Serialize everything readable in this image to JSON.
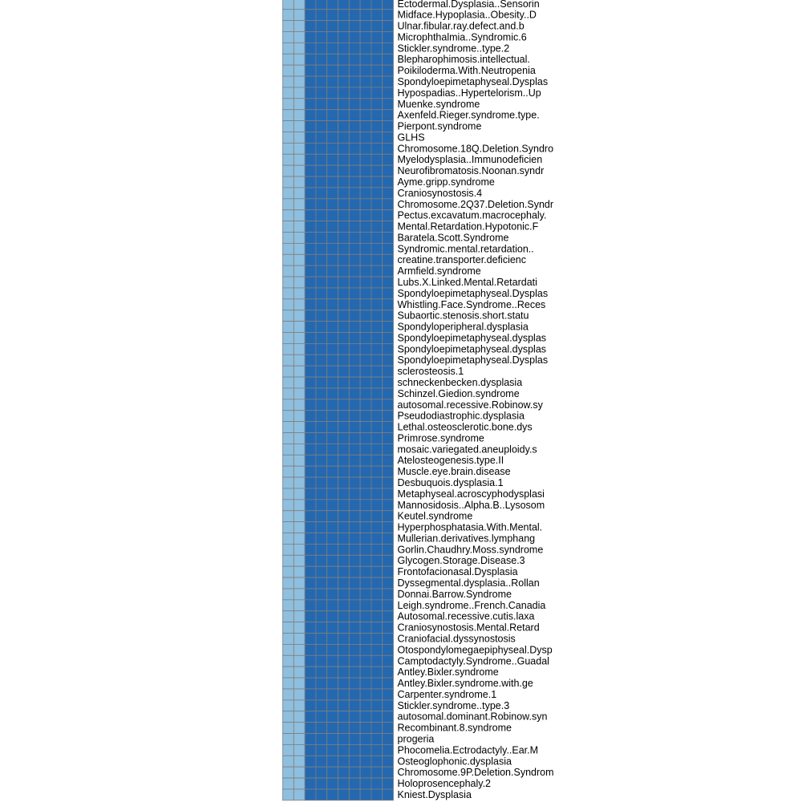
{
  "chart_data": {
    "type": "heatmap",
    "colors": {
      "low": "#8fbfdf",
      "high": "#2468b0",
      "grid": "#7f7f7f"
    },
    "columns": 10,
    "rows": [
      "Ectodermal.Dysplasia..Sensorin",
      "Midface.Hypoplasia..Obesity..D",
      "Ulnar.fibular.ray.defect.and.b",
      "Microphthalmia..Syndromic.6",
      "Stickler.syndrome..type.2",
      "Blepharophimosis.intellectual.",
      "Poikiloderma.With.Neutropenia",
      "Spondyloepimetaphyseal.Dysplas",
      "Hypospadias..Hypertelorism..Up",
      "Muenke.syndrome",
      "Axenfeld.Rieger.syndrome.type.",
      "Pierpont.syndrome",
      "GLHS",
      "Chromosome.18Q.Deletion.Syndro",
      "Myelodysplasia..Immunodeficien",
      "Neurofibromatosis.Noonan.syndr",
      "Ayme.gripp.syndrome",
      "Craniosynostosis.4",
      "Chromosome.2Q37.Deletion.Syndr",
      "Pectus.excavatum.macrocephaly.",
      "Mental.Retardation.Hypotonic.F",
      "Baratela.Scott.Syndrome",
      "Syndromic.mental.retardation..",
      "creatine.transporter.deficienc",
      "Armfield.syndrome",
      "Lubs.X.Linked.Mental.Retardati",
      "Spondyloepimetaphyseal.Dysplas",
      "Whistling.Face.Syndrome..Reces",
      "Subaortic.stenosis.short.statu",
      "Spondyloperipheral.dysplasia",
      "Spondyloepimetaphyseal.dysplas",
      "Spondyloepimetaphyseal.dysplas",
      "Spondyloepimetaphyseal.Dysplas",
      "sclerosteosis.1",
      "schneckenbecken.dysplasia",
      "Schinzel.Giedion.syndrome",
      "autosomal.recessive.Robinow.sy",
      "Pseudodiastrophic.dysplasia",
      "Lethal.osteosclerotic.bone.dys",
      "Primrose.syndrome",
      "mosaic.variegated.aneuploidy.s",
      "Atelosteogenesis.type.II",
      "Muscle.eye.brain.disease",
      "Desbuquois.dysplasia.1",
      "Metaphyseal.acroscyphodysplasi",
      "Mannosidosis..Alpha.B..Lysosom",
      "Keutel.syndrome",
      "Hyperphosphatasia.With.Mental.",
      "Mullerian.derivatives.lymphang",
      "Gorlin.Chaudhry.Moss.syndrome",
      "Glycogen.Storage.Disease.3",
      "Frontofacionasal.Dysplasia",
      "Dyssegmental.dysplasia..Rollan",
      "Donnai.Barrow.Syndrome",
      "Leigh.syndrome..French.Canadia",
      "Autosomal.recessive.cutis.laxa",
      "Craniosynostosis.Mental.Retard",
      "Craniofacial.dyssynostosis",
      "Otospondylomegaepiphyseal.Dysp",
      "Camptodactyly.Syndrome..Guadal",
      "Antley.Bixler.syndrome",
      "Antley.Bixler.syndrome.with.ge",
      "Carpenter.syndrome.1",
      "Stickler.syndrome..type.3",
      "autosomal.dominant.Robinow.syn",
      "Recombinant.8.syndrome",
      "progeria",
      "Phocomelia.Ectrodactyly..Ear.M",
      "Osteoglophonic.dysplasia",
      "Chromosome.9P.Deletion.Syndrom",
      "Holoprosencephaly.2",
      "Kniest.Dysplasia"
    ],
    "column_levels": [
      "low",
      "low",
      "high",
      "high",
      "high",
      "high",
      "high",
      "high",
      "high",
      "high"
    ]
  }
}
